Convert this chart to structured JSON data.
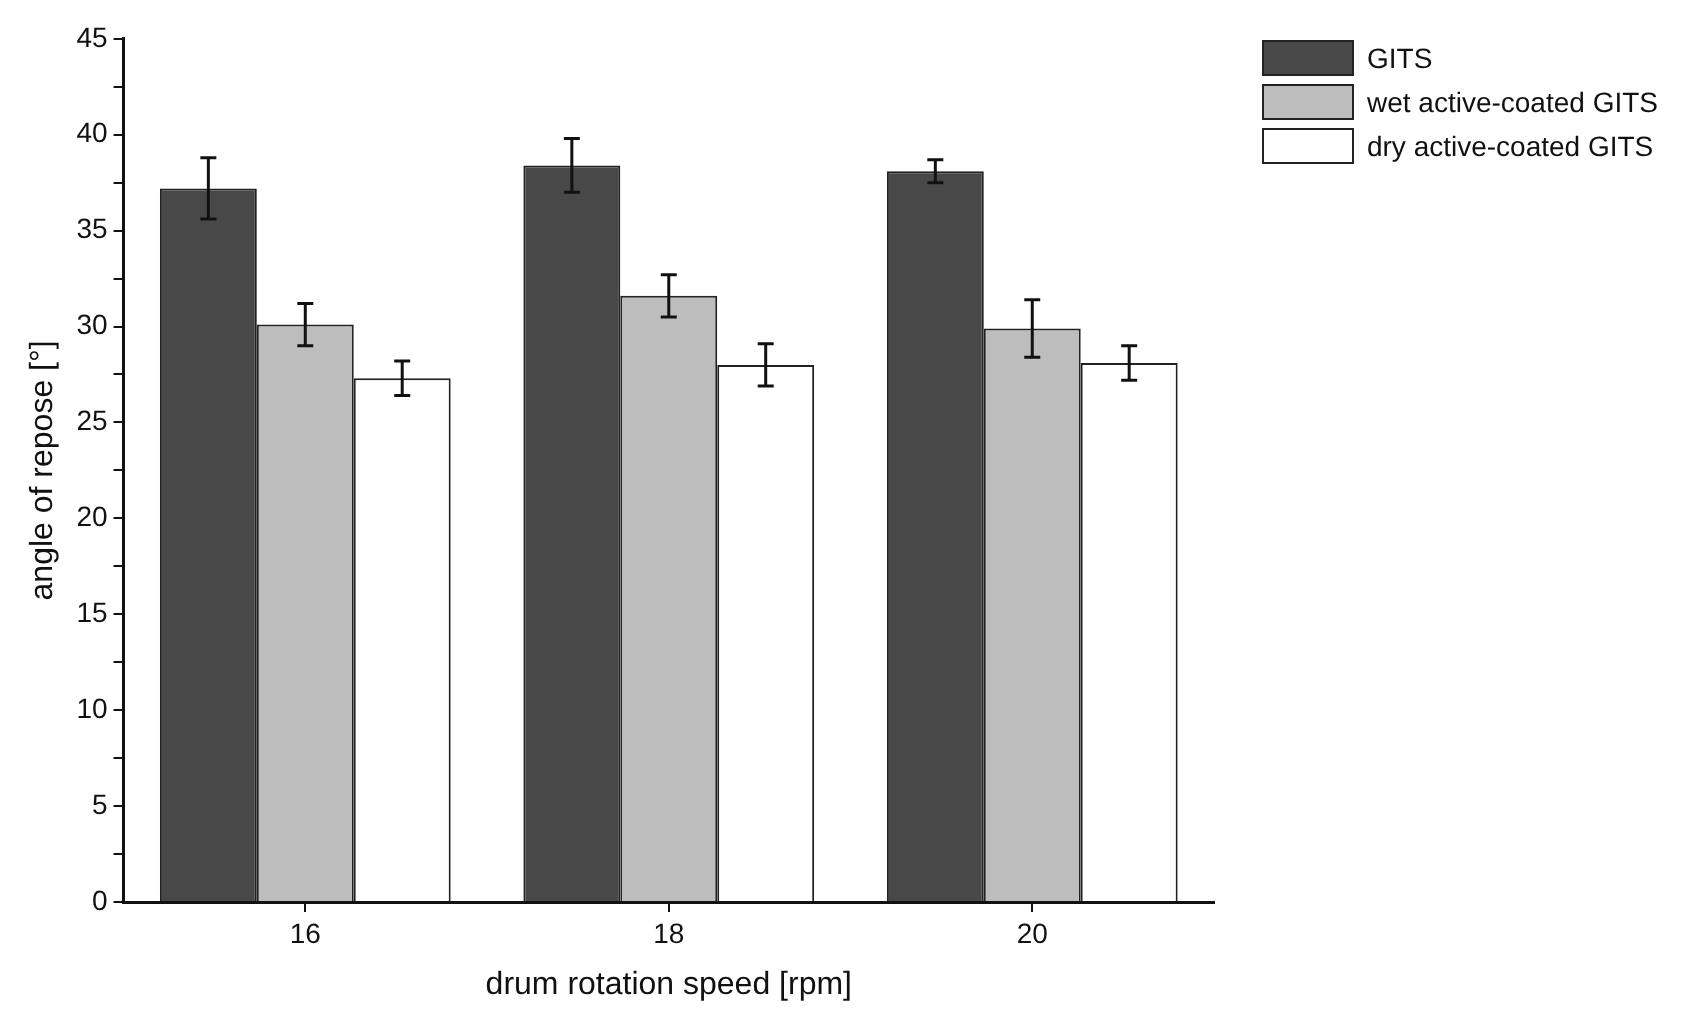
{
  "chart_data": {
    "type": "bar",
    "xlabel": "drum rotation speed [rpm]",
    "ylabel": "angle of repose [°]",
    "categories": [
      "16",
      "18",
      "20"
    ],
    "series": [
      {
        "name": "GITS",
        "color": "#484848",
        "values": [
          37.2,
          38.4,
          38.1
        ],
        "errors": [
          1.6,
          1.4,
          0.6
        ]
      },
      {
        "name": "wet active-coated GITS",
        "color": "#bdbdbd",
        "values": [
          30.1,
          31.6,
          29.9
        ],
        "errors": [
          1.1,
          1.1,
          1.5
        ]
      },
      {
        "name": "dry active-coated GITS",
        "color": "#ffffff",
        "values": [
          27.3,
          28.0,
          28.1
        ],
        "errors": [
          0.9,
          1.1,
          0.9
        ]
      }
    ],
    "ylim": [
      0,
      45
    ],
    "yticks": [
      0,
      {
        "value": 2.5,
        "label": null
      },
      5,
      {
        "value": 7.5,
        "label": null
      },
      10,
      {
        "value": 12.5,
        "label": null
      },
      15,
      {
        "value": 17.5,
        "label": null
      },
      20,
      {
        "value": 22.5,
        "label": null
      },
      25,
      {
        "value": 27.5,
        "label": null
      },
      30,
      {
        "value": 32.5,
        "label": null
      },
      35,
      {
        "value": 37.5,
        "label": null
      },
      40,
      {
        "value": 42.5,
        "label": null
      },
      45
    ],
    "grid": false,
    "legend": "top right"
  }
}
